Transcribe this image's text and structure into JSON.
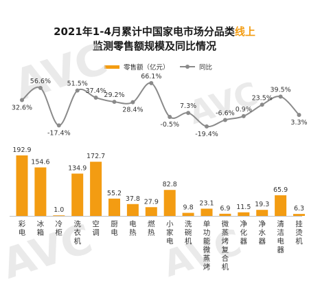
{
  "title": {
    "line1_prefix": "2021年1-4月累计中国家电市场分品类",
    "line1_highlight": "线上",
    "line2": "监测零售额规模及同比情况"
  },
  "legend": {
    "bar_label": "零售额（亿元）",
    "line_label": "同比"
  },
  "watermark": "AVC",
  "colors": {
    "bar": "#f39c12",
    "line": "#8a8a8a",
    "highlight": "#f39c12"
  },
  "chart_data": {
    "type": "bar+line",
    "categories": [
      "彩电",
      "冰箱",
      "冷柜",
      "洗衣机",
      "空调",
      "厨电",
      "电热",
      "燃热",
      "小家电",
      "洗碗机",
      "单功能微蒸烤",
      "微蒸烤复合机",
      "净化器",
      "净水器",
      "清洁电器",
      "挂烫机"
    ],
    "series": [
      {
        "name": "零售额（亿元）",
        "type": "bar",
        "values": [
          192.9,
          154.6,
          1.0,
          134.9,
          172.7,
          55.2,
          37.8,
          27.9,
          82.8,
          9.8,
          23.1,
          6.9,
          11.5,
          19.3,
          65.9,
          6.3
        ],
        "labels": [
          "192.9",
          "154.6",
          "1.0",
          "134.9",
          "172.7",
          "55.2",
          "37.8",
          "27.9",
          "82.8",
          "9.8",
          "23.1",
          "6.9",
          "11.5",
          "19.3",
          "65.9",
          "6.3"
        ]
      },
      {
        "name": "同比",
        "type": "line",
        "values": [
          32.6,
          56.6,
          -17.4,
          51.5,
          37.4,
          29.2,
          28.4,
          66.1,
          -0.5,
          7.3,
          -19.4,
          -6.6,
          0.9,
          23.5,
          39.5,
          3.3
        ],
        "labels": [
          "32.6%",
          "56.6%",
          "-17.4%",
          "51.5%",
          "37.4%",
          "29.2%",
          "28.4%",
          "66.1%",
          "-0.5%",
          "7.3%",
          "-19.4%",
          "-6.6%",
          "0.9%",
          "23.5%",
          "39.5%",
          "3.3%"
        ]
      }
    ]
  }
}
